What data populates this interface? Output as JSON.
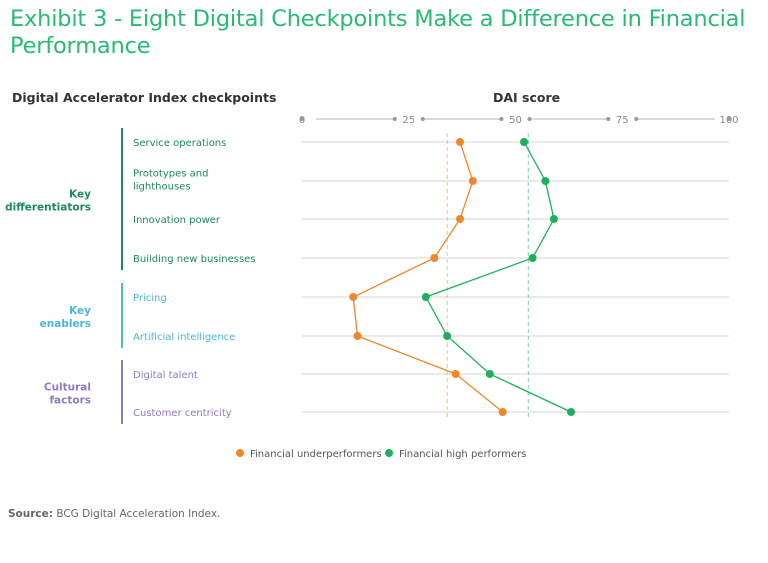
{
  "title": "Exhibit 3 - Eight Digital Checkpoints Make a Difference in Financial Performance",
  "left_header": "Digital Accelerator Index checkpoints",
  "right_header": "DAI score",
  "source": {
    "label": "Source:",
    "text": "BCG Digital Acceleration Index."
  },
  "colors": {
    "underperformers": "#f0872d",
    "high_performers": "#1faf5c",
    "key_differentiators": "#1d8a5e",
    "key_enablers": "#4bb6d8",
    "cultural_factors": "#8e7cc3"
  },
  "chart_data": {
    "type": "line",
    "xlim": [
      0,
      100
    ],
    "x_ticks": [
      "0",
      "25",
      "50",
      "75",
      "100"
    ],
    "categories": [
      "Service operations",
      "Prototypes and lighthouses",
      "Innovation power",
      "Building new businesses",
      "Pricing",
      "Artificial intelligence",
      "Digital talent",
      "Customer centricity"
    ],
    "groups": [
      {
        "label": "Key differentiators",
        "color_key": "key_differentiators",
        "start": 0,
        "end": 3
      },
      {
        "label": "Key enablers",
        "color_key": "key_enablers",
        "start": 4,
        "end": 5
      },
      {
        "label": "Cultural factors",
        "color_key": "cultural_factors",
        "start": 6,
        "end": 7
      }
    ],
    "series": [
      {
        "name": "Financial underperformers",
        "color_key": "underperformers",
        "values": [
          37,
          40,
          37,
          31,
          12,
          13,
          36,
          47
        ],
        "average": 34
      },
      {
        "name": "Financial high performers",
        "color_key": "high_performers",
        "values": [
          52,
          57,
          59,
          54,
          29,
          34,
          44,
          63
        ],
        "average": 53
      }
    ],
    "legend_position": "bottom"
  }
}
